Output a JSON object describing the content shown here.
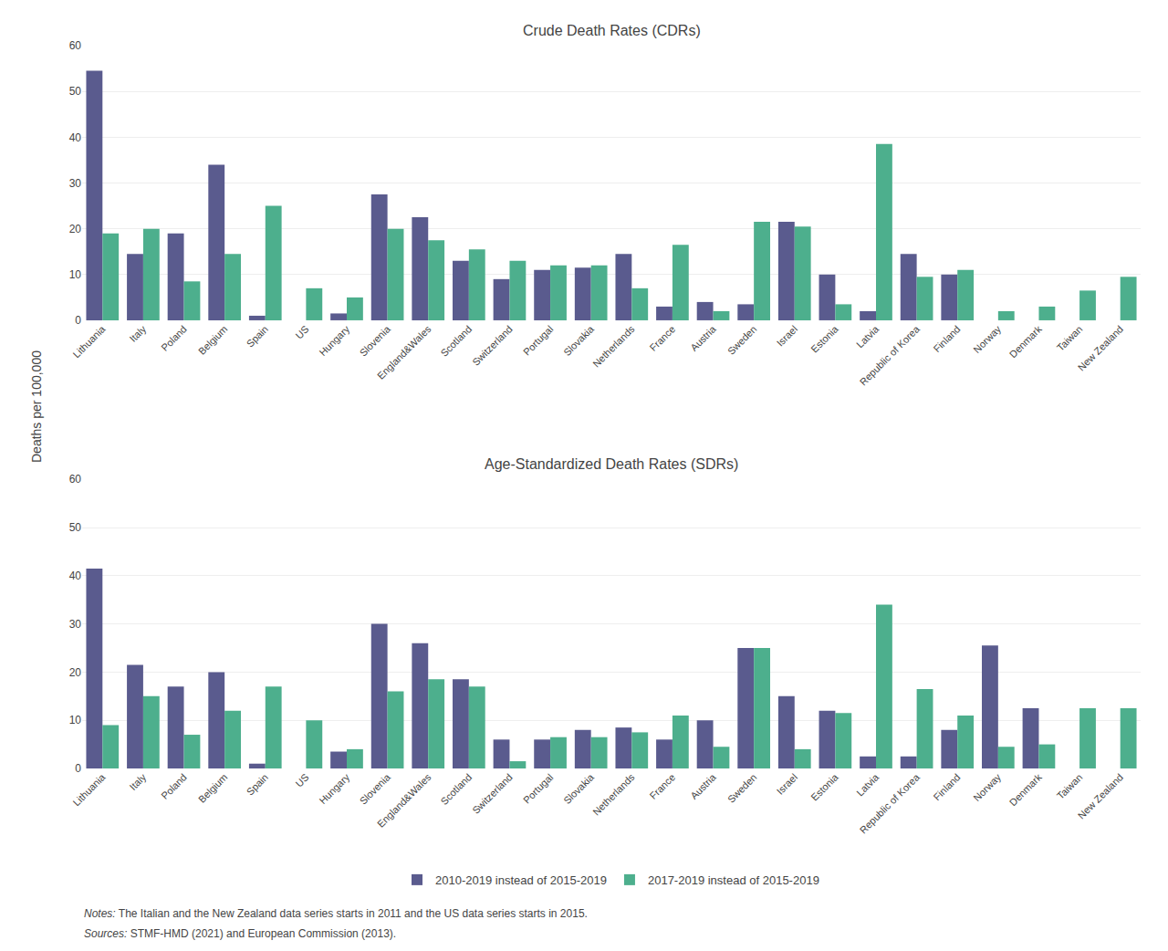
{
  "chart_data": [
    {
      "type": "bar",
      "title": "Crude Death Rates (CDRs)",
      "ylabel": "Deaths per 100,000",
      "categories": [
        "Lithuania",
        "Italy",
        "Poland",
        "Belgium",
        "Spain",
        "US",
        "Hungary",
        "Slovenia",
        "England&Wales",
        "Scotland",
        "Switzerland",
        "Portugal",
        "Slovakia",
        "Netherlands",
        "France",
        "Austria",
        "Sweden",
        "Israel",
        "Estonia",
        "Latvia",
        "Republic of Korea",
        "Finland",
        "Norway",
        "Denmark",
        "Taiwan",
        "New Zealand"
      ],
      "series": [
        {
          "name": "2010-2019 instead of 2015-2019",
          "color": "#5a5b8e",
          "values": [
            54.5,
            14.5,
            19.0,
            34.0,
            1.0,
            0,
            1.5,
            27.5,
            22.5,
            13.0,
            9.0,
            11.0,
            11.5,
            14.5,
            3.0,
            4.0,
            3.5,
            21.5,
            10.0,
            2.0,
            14.5,
            10.0,
            0,
            0,
            0,
            0
          ]
        },
        {
          "name": "2017-2019 instead of 2015-2019",
          "color": "#4daf8d",
          "values": [
            19.0,
            20.0,
            8.5,
            14.5,
            25.0,
            7.0,
            5.0,
            20.0,
            17.5,
            15.5,
            13.0,
            12.0,
            12.0,
            7.0,
            16.5,
            2.0,
            21.5,
            20.5,
            3.5,
            38.5,
            9.5,
            11.0,
            2.0,
            3.0,
            6.5,
            9.5
          ]
        }
      ],
      "ylim": [
        0,
        60
      ],
      "yticks": [
        0,
        10,
        20,
        30,
        40,
        50,
        60
      ],
      "grid": true
    },
    {
      "type": "bar",
      "title": "Age-Standardized Death Rates (SDRs)",
      "categories": [
        "Lithuania",
        "Italy",
        "Poland",
        "Belgium",
        "Spain",
        "US",
        "Hungary",
        "Slovenia",
        "England&Wales",
        "Scotland",
        "Switzerland",
        "Portugal",
        "Slovakia",
        "Netherlands",
        "France",
        "Austria",
        "Sweden",
        "Israel",
        "Estonia",
        "Latvia",
        "Republic of Korea",
        "Finland",
        "Norway",
        "Denmark",
        "Taiwan",
        "New Zealand"
      ],
      "series": [
        {
          "name": "2010-2019 instead of 2015-2019",
          "color": "#5a5b8e",
          "values": [
            41.5,
            21.5,
            17.0,
            20.0,
            1.0,
            0,
            3.5,
            30.0,
            26.0,
            18.5,
            6.0,
            6.0,
            8.0,
            8.5,
            6.0,
            10.0,
            25.0,
            15.0,
            12.0,
            2.5,
            2.5,
            8.0,
            25.5,
            12.5,
            0,
            0
          ]
        },
        {
          "name": "2017-2019 instead of 2015-2019",
          "color": "#4daf8d",
          "values": [
            9.0,
            15.0,
            7.0,
            12.0,
            17.0,
            10.0,
            4.0,
            16.0,
            18.5,
            17.0,
            1.5,
            6.5,
            6.5,
            7.5,
            11.0,
            4.5,
            25.0,
            4.0,
            11.5,
            34.0,
            16.5,
            11.0,
            4.5,
            5.0,
            12.5,
            12.5
          ]
        }
      ],
      "ylim": [
        0,
        60
      ],
      "yticks": [
        0,
        10,
        20,
        30,
        40,
        50,
        60
      ],
      "grid": true,
      "legend": "bottom",
      "annotations": [
        "Notes: The Italian and the New Zealand data series starts in 2011 and the US data series starts in 2015.",
        "Sources: STMF-HMD (2021) and European Commission (2013)."
      ]
    }
  ]
}
